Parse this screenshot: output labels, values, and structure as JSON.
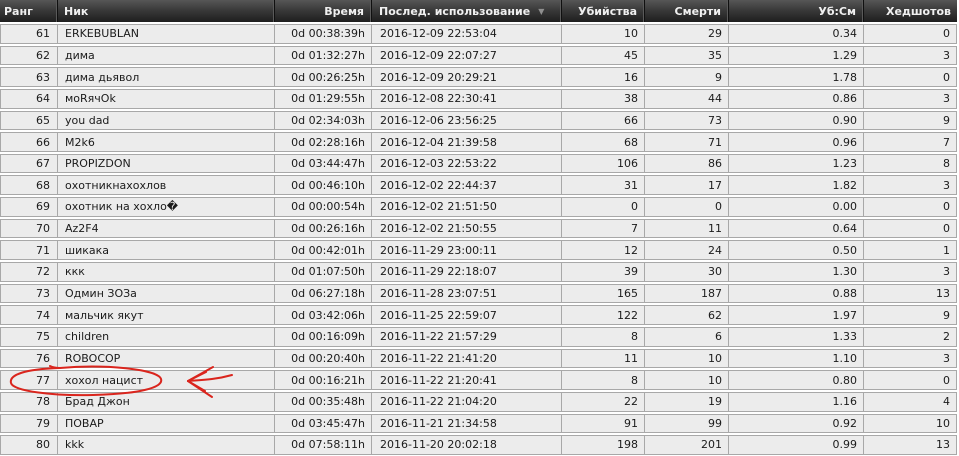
{
  "table": {
    "columns": [
      {
        "key": "rank",
        "label": "Ранг",
        "sorted": false
      },
      {
        "key": "nick",
        "label": "Ник",
        "sorted": false
      },
      {
        "key": "time",
        "label": "Время",
        "sorted": false
      },
      {
        "key": "last_use",
        "label": "Послед. использование",
        "sorted": true
      },
      {
        "key": "kills",
        "label": "Убийства",
        "sorted": false
      },
      {
        "key": "deaths",
        "label": "Смерти",
        "sorted": false
      },
      {
        "key": "ratio",
        "label": "Уб:См",
        "sorted": false
      },
      {
        "key": "headshots",
        "label": "Хедшотов",
        "sorted": false
      }
    ],
    "sort_indicator": "▼",
    "rows": [
      {
        "rank": "61",
        "nick": "ERKEBUBLAN",
        "time": "0d 00:38:39h",
        "last_use": "2016-12-09 22:53:04",
        "kills": "10",
        "deaths": "29",
        "ratio": "0.34",
        "headshots": "0"
      },
      {
        "rank": "62",
        "nick": "дима",
        "time": "0d 01:32:27h",
        "last_use": "2016-12-09 22:07:27",
        "kills": "45",
        "deaths": "35",
        "ratio": "1.29",
        "headshots": "3"
      },
      {
        "rank": "63",
        "nick": "дима дьявол",
        "time": "0d 00:26:25h",
        "last_use": "2016-12-09 20:29:21",
        "kills": "16",
        "deaths": "9",
        "ratio": "1.78",
        "headshots": "0"
      },
      {
        "rank": "64",
        "nick": "моRячOk",
        "time": "0d 01:29:55h",
        "last_use": "2016-12-08 22:30:41",
        "kills": "38",
        "deaths": "44",
        "ratio": "0.86",
        "headshots": "3"
      },
      {
        "rank": "65",
        "nick": "you dad",
        "time": "0d 02:34:03h",
        "last_use": "2016-12-06 23:56:25",
        "kills": "66",
        "deaths": "73",
        "ratio": "0.90",
        "headshots": "9"
      },
      {
        "rank": "66",
        "nick": "M2k6",
        "time": "0d 02:28:16h",
        "last_use": "2016-12-04 21:39:58",
        "kills": "68",
        "deaths": "71",
        "ratio": "0.96",
        "headshots": "7"
      },
      {
        "rank": "67",
        "nick": "PROPIZDON",
        "time": "0d 03:44:47h",
        "last_use": "2016-12-03 22:53:22",
        "kills": "106",
        "deaths": "86",
        "ratio": "1.23",
        "headshots": "8"
      },
      {
        "rank": "68",
        "nick": "охотникнахохлов",
        "time": "0d 00:46:10h",
        "last_use": "2016-12-02 22:44:37",
        "kills": "31",
        "deaths": "17",
        "ratio": "1.82",
        "headshots": "3"
      },
      {
        "rank": "69",
        "nick": "охотник на хохло�",
        "time": "0d 00:00:54h",
        "last_use": "2016-12-02 21:51:50",
        "kills": "0",
        "deaths": "0",
        "ratio": "0.00",
        "headshots": "0"
      },
      {
        "rank": "70",
        "nick": "Az2F4",
        "time": "0d 00:26:16h",
        "last_use": "2016-12-02 21:50:55",
        "kills": "7",
        "deaths": "11",
        "ratio": "0.64",
        "headshots": "0"
      },
      {
        "rank": "71",
        "nick": "шикака",
        "time": "0d 00:42:01h",
        "last_use": "2016-11-29 23:00:11",
        "kills": "12",
        "deaths": "24",
        "ratio": "0.50",
        "headshots": "1"
      },
      {
        "rank": "72",
        "nick": "ккк",
        "time": "0d 01:07:50h",
        "last_use": "2016-11-29 22:18:07",
        "kills": "39",
        "deaths": "30",
        "ratio": "1.30",
        "headshots": "3"
      },
      {
        "rank": "73",
        "nick": "Одмин ЗОЗа",
        "time": "0d 06:27:18h",
        "last_use": "2016-11-28 23:07:51",
        "kills": "165",
        "deaths": "187",
        "ratio": "0.88",
        "headshots": "13"
      },
      {
        "rank": "74",
        "nick": "мальчик якут",
        "time": "0d 03:42:06h",
        "last_use": "2016-11-25 22:59:07",
        "kills": "122",
        "deaths": "62",
        "ratio": "1.97",
        "headshots": "9"
      },
      {
        "rank": "75",
        "nick": "children",
        "time": "0d 00:16:09h",
        "last_use": "2016-11-22 21:57:29",
        "kills": "8",
        "deaths": "6",
        "ratio": "1.33",
        "headshots": "2"
      },
      {
        "rank": "76",
        "nick": "ROBOCOP",
        "time": "0d 00:20:40h",
        "last_use": "2016-11-22 21:41:20",
        "kills": "11",
        "deaths": "10",
        "ratio": "1.10",
        "headshots": "3"
      },
      {
        "rank": "77",
        "nick": "хохол нацист",
        "time": "0d 00:16:21h",
        "last_use": "2016-11-22 21:20:41",
        "kills": "8",
        "deaths": "10",
        "ratio": "0.80",
        "headshots": "0"
      },
      {
        "rank": "78",
        "nick": "Брад Джон",
        "time": "0d 00:35:48h",
        "last_use": "2016-11-22 21:04:20",
        "kills": "22",
        "deaths": "19",
        "ratio": "1.16",
        "headshots": "4"
      },
      {
        "rank": "79",
        "nick": "ПОВАР",
        "time": "0d 03:45:47h",
        "last_use": "2016-11-21 21:34:58",
        "kills": "91",
        "deaths": "99",
        "ratio": "0.92",
        "headshots": "10"
      },
      {
        "rank": "80",
        "nick": "kkk",
        "time": "0d 07:58:11h",
        "last_use": "2016-11-20 20:02:18",
        "kills": "198",
        "deaths": "201",
        "ratio": "0.99",
        "headshots": "13"
      }
    ]
  },
  "annotation": {
    "description": "hand-drawn red circle around rank 77 row (хохол нацист) with a red arrow pointing at it",
    "target_rank": "77",
    "color": "#da251d"
  },
  "colors": {
    "header_top": "#565656",
    "header_bottom": "#1e1e1e",
    "header_text": "#f0f0f0",
    "row_bg": "#ececec",
    "row_border": "#a8a8a8",
    "cell_text": "#1b1b1b",
    "page_bg": "#ffffff"
  }
}
